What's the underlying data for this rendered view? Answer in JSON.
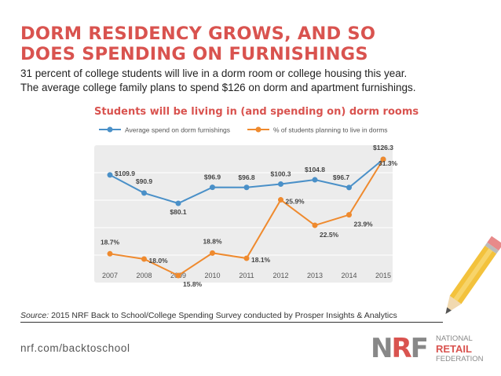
{
  "header": {
    "title_line1": "DORM RESIDENCY GROWS, AND SO",
    "title_line2": "DOES SPENDING ON FURNISHINGS",
    "subtitle_line1": "31 percent of college students will live in a dorm room or college housing this year.",
    "subtitle_line2": "The average college family plans to spend $126 on dorm and apartment furnishings."
  },
  "chart_data": {
    "type": "line",
    "title": "Students will be living in (and spending on) dorm rooms",
    "categories": [
      "2007",
      "2008",
      "2009",
      "2010",
      "2011",
      "2012",
      "2013",
      "2014",
      "2015"
    ],
    "series": [
      {
        "name": "Average spend on dorm furnishings",
        "color": "#4a90c8",
        "values": [
          109.9,
          90.9,
          80.1,
          96.9,
          96.8,
          100.3,
          104.8,
          96.7,
          126.3
        ],
        "labels": [
          "$109.9",
          "$90.9",
          "$80.1",
          "$96.9",
          "$96.8",
          "$100.3",
          "$104.8",
          "$96.7",
          "$126.3"
        ]
      },
      {
        "name": "% of students planning to live in dorms",
        "color": "#ef8a2e",
        "values": [
          18.7,
          18.0,
          15.8,
          18.8,
          18.1,
          25.9,
          22.5,
          23.9,
          31.3
        ],
        "labels": [
          "18.7%",
          "18.0%",
          "15.8%",
          "18.8%",
          "18.1%",
          "25.9%",
          "22.5%",
          "23.9%",
          "31.3%"
        ]
      }
    ],
    "legend": "top",
    "grid": true
  },
  "footer": {
    "source_label": "Source:",
    "source_text": " 2015 NRF Back to School/College Spending Survey conducted by Prosper Insights & Analytics",
    "url": "nrf.com/backtoschool"
  },
  "logo": {
    "mark_n": "N",
    "mark_r": "R",
    "mark_f": "F",
    "line1": "NATIONAL",
    "line2": "RETAIL",
    "line3": "FEDERATION"
  },
  "colors": {
    "accent": "#d9534f",
    "spend_line": "#4a90c8",
    "dorm_line": "#ef8a2e",
    "plot_bg": "#ececec"
  }
}
